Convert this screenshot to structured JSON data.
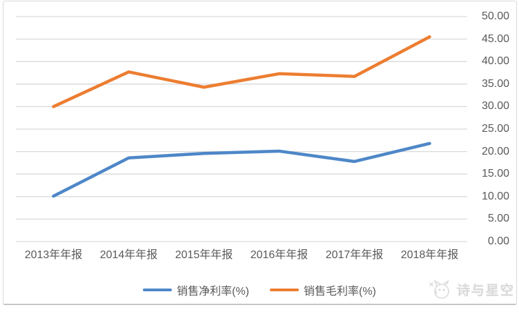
{
  "chart_data": {
    "type": "line",
    "title": "",
    "xlabel": "",
    "ylabel": "",
    "categories": [
      "2013年年报",
      "2014年年报",
      "2015年年报",
      "2016年年报",
      "2017年年报",
      "2018年年报"
    ],
    "series": [
      {
        "name": "销售净利率(%)",
        "color": "#4E87C8",
        "values": [
          10.1,
          18.6,
          19.6,
          20.1,
          17.8,
          21.8
        ]
      },
      {
        "name": "销售毛利率(%)",
        "color": "#ED7D31",
        "values": [
          30.0,
          37.7,
          34.3,
          37.3,
          36.7,
          45.5
        ]
      }
    ],
    "y_axis": {
      "side": "right",
      "min": 0,
      "max": 50,
      "step": 5,
      "ticks": [
        0,
        5,
        10,
        15,
        20,
        25,
        30,
        35,
        40,
        45,
        50
      ],
      "tick_labels": [
        "0.00",
        "5.00",
        "10.00",
        "15.00",
        "20.00",
        "25.00",
        "30.00",
        "35.00",
        "40.00",
        "45.00",
        "50.00"
      ]
    },
    "grid": "horizontal",
    "legend_position": "bottom"
  },
  "colors": {
    "gridline": "#D9D9D9",
    "axis_text": "#595959",
    "frame_border": "#D9D9D9",
    "watermark": "#D9D9D9"
  },
  "watermark": {
    "text": "诗与星空"
  }
}
